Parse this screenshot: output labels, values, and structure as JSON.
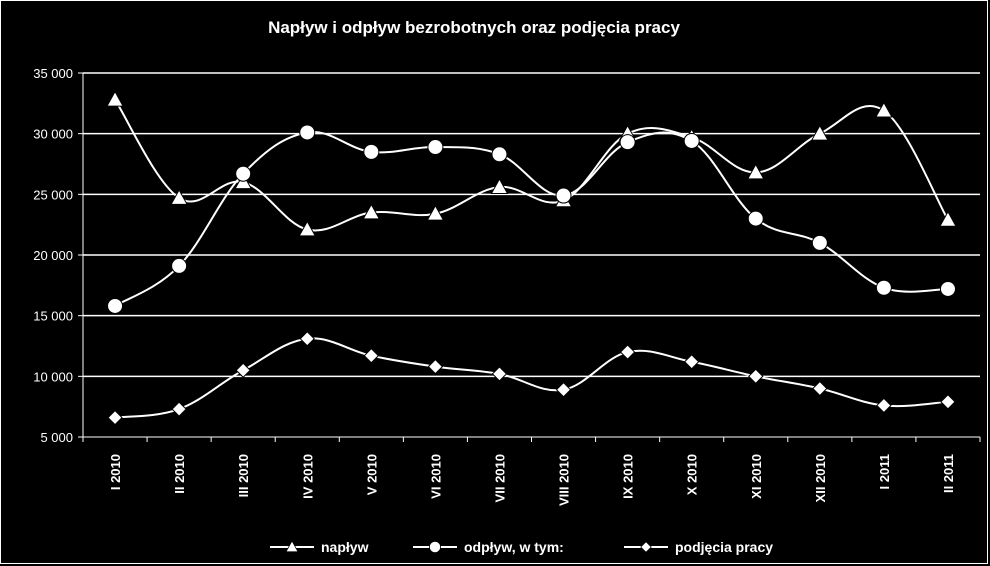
{
  "chart_data": {
    "type": "line",
    "title": "Napływ i odpływ bezrobotnych oraz podjęcia pracy",
    "xlabel": "",
    "ylabel": "",
    "ylim": [
      5000,
      35000
    ],
    "yticks": [
      5000,
      10000,
      15000,
      20000,
      25000,
      30000,
      35000
    ],
    "ytick_labels": [
      "5 000",
      "10 000",
      "15 000",
      "20 000",
      "25 000",
      "30 000",
      "35 000"
    ],
    "grid": true,
    "legend_position": "bottom",
    "categories": [
      "I 2010",
      "II 2010",
      "III 2010",
      "IV 2010",
      "V 2010",
      "VI 2010",
      "VII 2010",
      "VIII 2010",
      "IX 2010",
      "X 2010",
      "XI 2010",
      "XII 2010",
      "I 2011",
      "II 2011"
    ],
    "series": [
      {
        "name": "napływ",
        "marker": "triangle",
        "values": [
          32800,
          24700,
          26000,
          22100,
          23500,
          23400,
          25600,
          24500,
          30000,
          29700,
          26800,
          30000,
          31900,
          22900
        ]
      },
      {
        "name": "odpływ, w tym:",
        "marker": "circle",
        "values": [
          15800,
          19100,
          26700,
          30100,
          28500,
          28900,
          28300,
          24900,
          29300,
          29400,
          23000,
          21000,
          17300,
          17200
        ]
      },
      {
        "name": "podjęcia pracy",
        "marker": "diamond",
        "values": [
          6600,
          7300,
          10500,
          13100,
          11700,
          10800,
          10200,
          8900,
          12000,
          11200,
          10000,
          9000,
          7600,
          7900
        ]
      }
    ]
  },
  "colors": {
    "background": "#000000",
    "foreground": "#ffffff"
  }
}
